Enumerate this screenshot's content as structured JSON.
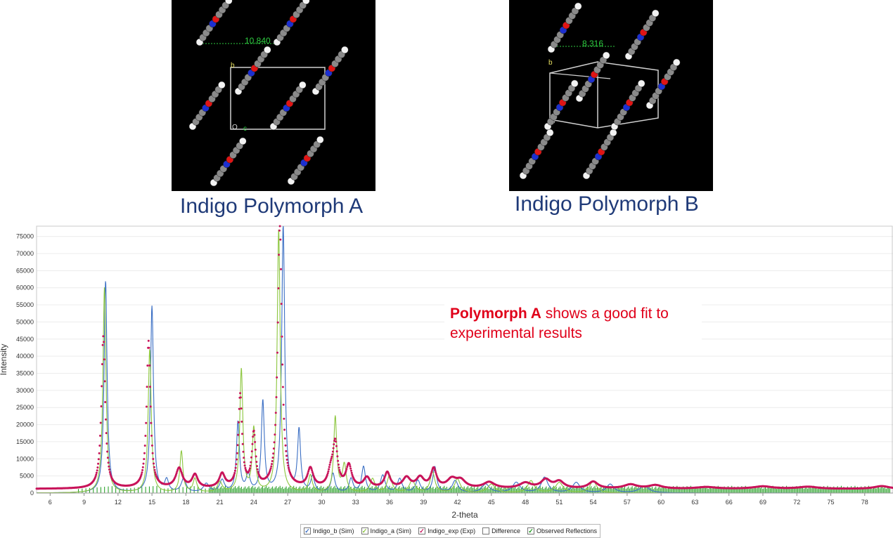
{
  "panels": {
    "a": {
      "title": "Indigo Polymorph A",
      "measure": "10.840"
    },
    "b": {
      "title": "Indigo Polymorph B",
      "measure": "8.316"
    }
  },
  "annotation": {
    "bold": "Polymorph A",
    "rest": " shows a good fit to experimental results"
  },
  "legend": [
    {
      "label": "Indigo_b (Sim)",
      "color": "#3b6fc4",
      "checked": true
    },
    {
      "label": "Indigo_a (Sim)",
      "color": "#8cc63e",
      "checked": true
    },
    {
      "label": "Indigo_exp (Exp)",
      "color": "#c8145a",
      "checked": true
    },
    {
      "label": "Difference",
      "color": "#222222",
      "checked": false
    },
    {
      "label": "Observed Reflections",
      "color": "#1a9a1a",
      "checked": true
    }
  ],
  "chart_data": {
    "type": "line",
    "xlabel": "2-theta",
    "ylabel": "Intensity",
    "xlim": [
      4.8,
      80.5
    ],
    "ylim": [
      0,
      78000
    ],
    "xticks": [
      6,
      9,
      12,
      15,
      18,
      21,
      24,
      27,
      30,
      33,
      36,
      39,
      42,
      45,
      48,
      51,
      54,
      57,
      60,
      63,
      66,
      69,
      72,
      75,
      78
    ],
    "yticks": [
      0,
      5000,
      10000,
      15000,
      20000,
      25000,
      30000,
      35000,
      40000,
      45000,
      50000,
      55000,
      60000,
      65000,
      70000,
      75000
    ],
    "grid": true,
    "series": [
      {
        "name": "Indigo_b (Sim)",
        "color": "#3b6fc4",
        "style": "line",
        "baseline": 0,
        "peaks": [
          [
            10.9,
            62000,
            0.16
          ],
          [
            15.0,
            54500,
            0.16
          ],
          [
            16.3,
            3500,
            0.2
          ],
          [
            17.8,
            4000,
            0.25
          ],
          [
            19.8,
            2500,
            0.3
          ],
          [
            21.2,
            3500,
            0.25
          ],
          [
            22.6,
            20500,
            0.16
          ],
          [
            23.5,
            5000,
            0.2
          ],
          [
            24.8,
            26500,
            0.16
          ],
          [
            26.6,
            78000,
            0.16
          ],
          [
            28.0,
            18000,
            0.16
          ],
          [
            29.2,
            4500,
            0.2
          ],
          [
            31.0,
            5500,
            0.2
          ],
          [
            32.6,
            4000,
            0.2
          ],
          [
            33.7,
            7500,
            0.2
          ],
          [
            35.4,
            5000,
            0.25
          ],
          [
            36.9,
            4000,
            0.25
          ],
          [
            38.5,
            3500,
            0.25
          ],
          [
            40.0,
            7500,
            0.2
          ],
          [
            41.8,
            3500,
            0.3
          ],
          [
            44.5,
            2500,
            0.4
          ],
          [
            47.2,
            3000,
            0.4
          ],
          [
            49.7,
            4500,
            0.35
          ],
          [
            52.5,
            3000,
            0.4
          ],
          [
            55.5,
            2500,
            0.4
          ],
          [
            58.5,
            2000,
            0.5
          ]
        ]
      },
      {
        "name": "Indigo_a (Sim)",
        "color": "#8cc63e",
        "style": "line",
        "baseline": 0,
        "peaks": [
          [
            10.8,
            60000,
            0.16
          ],
          [
            14.8,
            42000,
            0.16
          ],
          [
            17.6,
            12000,
            0.16
          ],
          [
            18.8,
            4000,
            0.2
          ],
          [
            21.0,
            3000,
            0.25
          ],
          [
            22.9,
            36000,
            0.16
          ],
          [
            24.0,
            18500,
            0.16
          ],
          [
            26.2,
            77000,
            0.16
          ],
          [
            29.0,
            5000,
            0.2
          ],
          [
            31.2,
            22000,
            0.16
          ],
          [
            32.0,
            8000,
            0.2
          ],
          [
            34.5,
            4000,
            0.25
          ],
          [
            36.0,
            5000,
            0.25
          ],
          [
            38.0,
            3500,
            0.3
          ],
          [
            39.8,
            6000,
            0.25
          ],
          [
            42.0,
            4000,
            0.3
          ],
          [
            45.0,
            2500,
            0.4
          ],
          [
            48.5,
            3500,
            0.35
          ],
          [
            51.0,
            3000,
            0.4
          ],
          [
            54.0,
            3500,
            0.35
          ]
        ]
      },
      {
        "name": "Indigo_exp (Exp)",
        "color": "#c8145a",
        "style": "dots",
        "baseline": 1200,
        "peaks": [
          [
            10.7,
            44500,
            0.2
          ],
          [
            14.7,
            43000,
            0.2
          ],
          [
            17.4,
            5700,
            0.35
          ],
          [
            18.8,
            3800,
            0.3
          ],
          [
            21.2,
            4000,
            0.3
          ],
          [
            22.8,
            27000,
            0.2
          ],
          [
            24.0,
            15500,
            0.2
          ],
          [
            26.3,
            77000,
            0.22
          ],
          [
            29.0,
            5500,
            0.3
          ],
          [
            30.8,
            4000,
            0.3
          ],
          [
            31.2,
            12500,
            0.25
          ],
          [
            32.4,
            6500,
            0.3
          ],
          [
            34.0,
            3000,
            0.35
          ],
          [
            35.8,
            4500,
            0.3
          ],
          [
            37.5,
            3000,
            0.4
          ],
          [
            38.7,
            3000,
            0.4
          ],
          [
            39.9,
            5500,
            0.3
          ],
          [
            41.5,
            2500,
            0.5
          ],
          [
            42.3,
            2200,
            0.5
          ],
          [
            44.8,
            1800,
            0.6
          ],
          [
            48.0,
            1600,
            0.6
          ],
          [
            49.8,
            2500,
            0.5
          ],
          [
            51.0,
            2000,
            0.5
          ],
          [
            54.0,
            2000,
            0.5
          ],
          [
            57.3,
            1200,
            0.7
          ],
          [
            59.5,
            1000,
            0.7
          ],
          [
            64.0,
            500,
            1.0
          ],
          [
            69.0,
            700,
            1.0
          ],
          [
            73.0,
            600,
            1.0
          ],
          [
            79.5,
            800,
            0.8
          ]
        ]
      }
    ],
    "reflections": {
      "name": "Observed Reflections",
      "color": "#1a9a1a",
      "start": 8.5,
      "end": 80.3,
      "step": 0.11,
      "height": 2200
    }
  }
}
